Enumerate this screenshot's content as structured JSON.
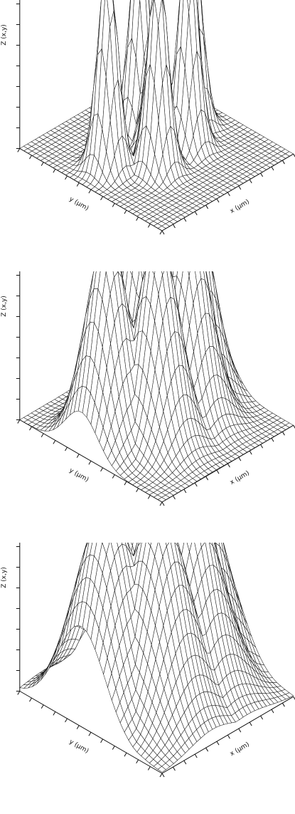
{
  "panels_name": "surface-plots",
  "chart_data": [
    {
      "type": "surface",
      "zlabel": "Z (x,y)",
      "xlabel": "x (μm)",
      "ylabel": "y (μm)",
      "grid": true,
      "peaks": [
        {
          "x": -0.9,
          "y": -0.2,
          "z": 1.0
        },
        {
          "x": -0.35,
          "y": 0.35,
          "z": 1.0
        },
        {
          "x": 0.1,
          "y": -0.45,
          "z": 1.0
        },
        {
          "x": 0.45,
          "y": 0.25,
          "z": 1.0
        },
        {
          "x": 0.9,
          "y": -0.1,
          "z": 1.0
        },
        {
          "x": -0.05,
          "y": 0.05,
          "z": 0.78
        }
      ],
      "peak_width": 0.16
    },
    {
      "type": "surface",
      "zlabel": "Z (x,y)",
      "xlabel": "x (μm)",
      "ylabel": "y (μm)",
      "grid": true,
      "peaks": [
        {
          "x": -0.9,
          "y": -0.2,
          "z": 1.0
        },
        {
          "x": -0.35,
          "y": 0.35,
          "z": 1.0
        },
        {
          "x": 0.1,
          "y": -0.45,
          "z": 1.0
        },
        {
          "x": 0.45,
          "y": 0.25,
          "z": 1.0
        },
        {
          "x": 0.9,
          "y": -0.1,
          "z": 1.0
        },
        {
          "x": -0.05,
          "y": 0.05,
          "z": 0.78
        }
      ],
      "peak_width": 0.34
    },
    {
      "type": "surface",
      "zlabel": "Z (x,y)",
      "xlabel": "x (μm)",
      "ylabel": "y (μm)",
      "grid": true,
      "peaks": [
        {
          "x": -0.9,
          "y": -0.2,
          "z": 1.0
        },
        {
          "x": -0.35,
          "y": 0.35,
          "z": 1.0
        },
        {
          "x": 0.1,
          "y": -0.45,
          "z": 1.0
        },
        {
          "x": 0.45,
          "y": 0.25,
          "z": 1.0
        },
        {
          "x": 0.9,
          "y": -0.1,
          "z": 1.0
        },
        {
          "x": -0.05,
          "y": 0.05,
          "z": 0.78
        }
      ],
      "peak_width": 0.5
    }
  ]
}
